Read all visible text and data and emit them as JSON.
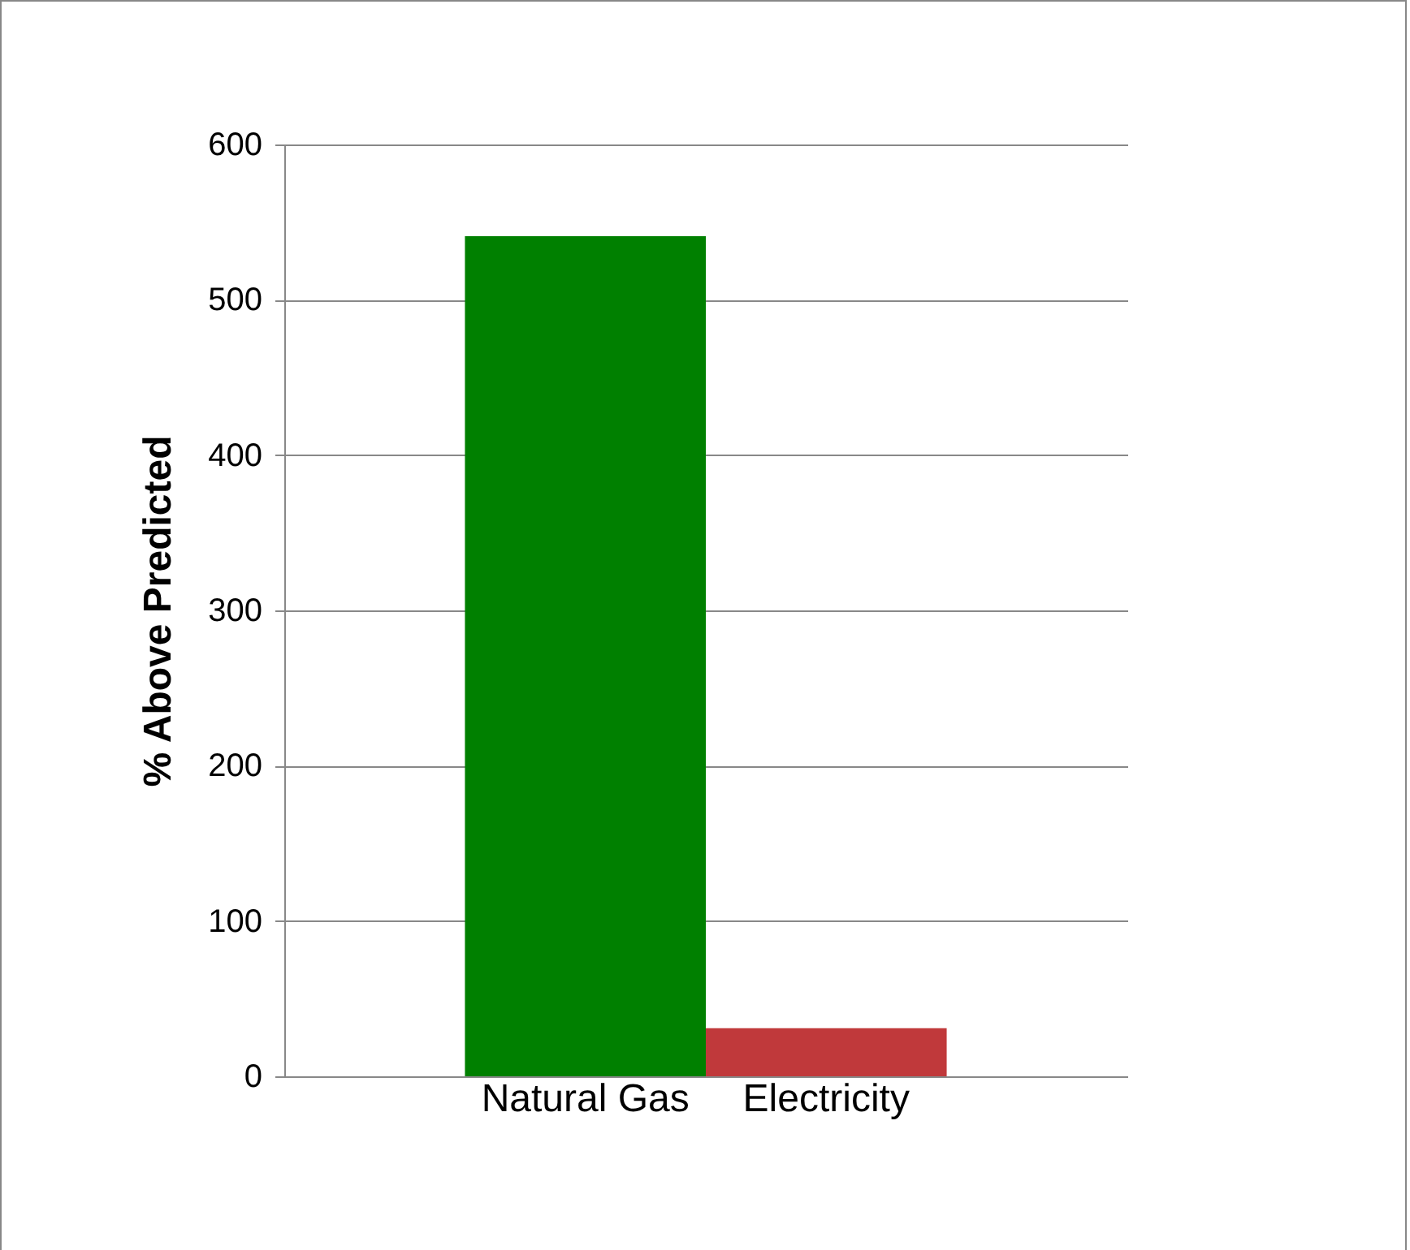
{
  "chart_data": {
    "type": "bar",
    "ylabel": "% Above Predicted",
    "categories": [
      "Natural Gas",
      "Electricity"
    ],
    "values": [
      541,
      31
    ],
    "colors": [
      "#008000",
      "#c0393b"
    ],
    "ylim": [
      0,
      600
    ],
    "yticks": [
      0,
      100,
      200,
      300,
      400,
      500,
      600
    ],
    "grid": "y",
    "legend": false
  }
}
